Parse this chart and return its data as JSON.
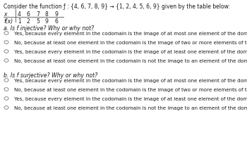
{
  "title": "Consider the function ƒ : {4, 6, 7, 8, 9} → {1, 2, 4, 5, 6, 9} given by the table below:",
  "table_x_vals": [
    "4",
    "6",
    "7",
    "8",
    "9"
  ],
  "table_fx_vals": [
    "1",
    "2",
    "5",
    "9",
    "6"
  ],
  "part_a_label": "a. Is f injective? Why or why not?",
  "part_b_label": "b. Is f surjective? Why or why not?",
  "options": [
    "Yes, because every element in the codomain is the image of at most one element of the domain.",
    "No, because at least one element in the codomain is the image of two or more elements of the domain.",
    "Yes, because every element in the codomain is the image of at least one element of the domain.",
    "No, because at least one element in the codomain is not the image to an element of the domain."
  ],
  "bg_color": "#ffffff",
  "text_color": "#1a1a1a",
  "gray_color": "#555555",
  "font_size_title": 5.5,
  "font_size_table": 5.5,
  "font_size_part": 5.6,
  "font_size_option": 5.1
}
